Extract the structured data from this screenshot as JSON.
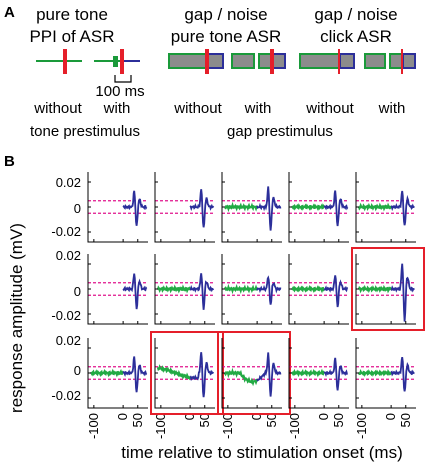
{
  "colors": {
    "stimulus_line": "#1a9a3a",
    "startle_marker": "#e51f2a",
    "noise_fill": "#8c8c8c",
    "noise_border_green": "#1a9a3a",
    "noise_border_blue": "#2c2f9a",
    "response_trace": "#2c2f9a",
    "prestim_trace": "#22aa44",
    "threshold_line": "#e0148c",
    "highlight_box": "#e51f2a"
  },
  "panel_a": {
    "label": "A",
    "groups": [
      {
        "title_line1": "pure tone",
        "title_line2": "PPI of ASR",
        "conditions": [
          "without",
          "with"
        ],
        "group_caption": "tone prestimulus",
        "scale_label": "100 ms"
      },
      {
        "title_line1": "gap / noise",
        "title_line2": "pure tone ASR",
        "conditions": [
          "without",
          "with"
        ],
        "group_caption": "gap prestimulus"
      },
      {
        "title_line1": "gap / noise",
        "title_line2": "click ASR",
        "conditions": [
          "without",
          "with"
        ]
      }
    ]
  },
  "panel_b": {
    "label": "B",
    "ylabel": "response amplitude (mV)",
    "xlabel": "time relative to stimulation onset (ms)",
    "y_ticks": [
      "0.02",
      "0",
      "-0.02"
    ],
    "x_ticks": [
      "-100",
      "0",
      "50"
    ],
    "xlim": [
      -120,
      85
    ],
    "ylim": [
      -0.028,
      0.028
    ],
    "threshold": 0.005,
    "highlighted_cells": [
      [
        1,
        4
      ],
      [
        2,
        1
      ],
      [
        2,
        2
      ]
    ]
  }
}
